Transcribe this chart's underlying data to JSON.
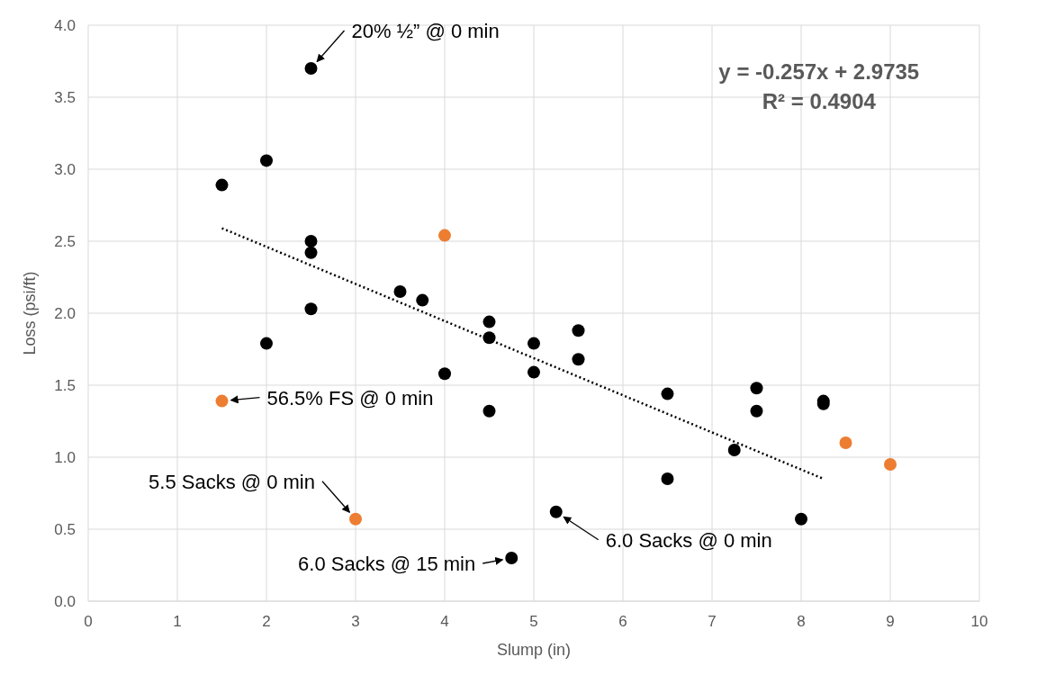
{
  "chart_data": {
    "type": "scatter",
    "xlabel": "Slump (in)",
    "ylabel": "Loss (psi/ft)",
    "xlim": [
      0,
      10
    ],
    "xticks": [
      0,
      1,
      2,
      3,
      4,
      5,
      6,
      7,
      8,
      9,
      10
    ],
    "ylim": [
      0,
      4
    ],
    "yticks": [
      {
        "value": 0,
        "label": "0.0"
      },
      {
        "value": 0.5,
        "label": "0.5"
      },
      {
        "value": 1,
        "label": "1.0"
      },
      {
        "value": 1.5,
        "label": "1.5"
      },
      {
        "value": 2,
        "label": "2.0"
      },
      {
        "value": 2.5,
        "label": "2.5"
      },
      {
        "value": 3,
        "label": "3.0"
      },
      {
        "value": 3.5,
        "label": "3.5"
      },
      {
        "value": 4,
        "label": "4.0"
      }
    ],
    "grid": true,
    "marker": "circle",
    "series": [
      {
        "color": "#000000",
        "x": [
          1.5,
          2,
          2.5,
          2.5,
          2.5,
          2.5,
          2,
          3.5,
          3.75,
          4,
          4.5,
          4.5,
          4.5,
          5,
          5,
          5.5,
          5.5,
          6.5,
          6.5,
          7.25,
          7.5,
          7.5,
          8.25,
          8.25,
          8,
          5.25,
          4.75
        ],
        "values": [
          2.89,
          3.06,
          3.7,
          2.5,
          2.42,
          2.03,
          1.79,
          2.15,
          2.09,
          1.58,
          1.94,
          1.83,
          1.32,
          1.79,
          1.59,
          1.88,
          1.68,
          1.44,
          0.85,
          1.05,
          1.48,
          1.32,
          1.39,
          1.37,
          0.57,
          0.62,
          0.3
        ]
      },
      {
        "color": "#ed7d31",
        "x": [
          1.5,
          4,
          3,
          8.5,
          9
        ],
        "values": [
          1.39,
          2.54,
          0.57,
          1.1,
          0.95
        ]
      },
      {
        "type": "line",
        "color": "#000000",
        "line_style": "dotted",
        "marker": "none",
        "x": [
          1.5,
          8.25
        ],
        "values": [
          2.59,
          0.85
        ]
      }
    ],
    "annotations": [
      {
        "text": "20% ½” @ 0 min",
        "x": 2.5,
        "y": 3.7
      },
      {
        "text": "56.5% FS @ 0 min",
        "x": 1.5,
        "y": 1.39
      },
      {
        "text": "5.5 Sacks @ 0 min",
        "x": 3,
        "y": 0.57
      },
      {
        "text": "6.0 Sacks @ 15 min",
        "x": 4.75,
        "y": 0.3
      },
      {
        "text": "6.0 Sacks @ 0 min",
        "x": 5.25,
        "y": 0.62
      },
      "y = -0.257x + 2.9735",
      "R² = 0.4904"
    ]
  }
}
